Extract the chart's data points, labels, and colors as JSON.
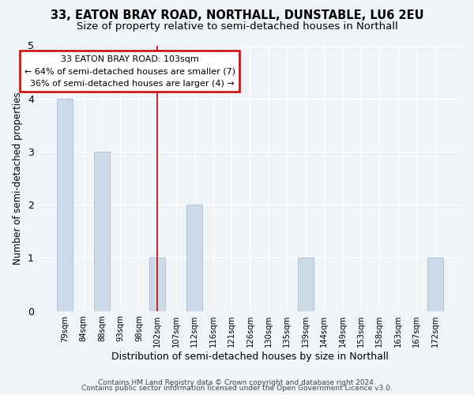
{
  "title": "33, EATON BRAY ROAD, NORTHALL, DUNSTABLE, LU6 2EU",
  "subtitle": "Size of property relative to semi-detached houses in Northall",
  "xlabel": "Distribution of semi-detached houses by size in Northall",
  "ylabel": "Number of semi-detached properties",
  "categories": [
    "79sqm",
    "84sqm",
    "88sqm",
    "93sqm",
    "98sqm",
    "102sqm",
    "107sqm",
    "112sqm",
    "116sqm",
    "121sqm",
    "126sqm",
    "130sqm",
    "135sqm",
    "139sqm",
    "144sqm",
    "149sqm",
    "153sqm",
    "158sqm",
    "163sqm",
    "167sqm",
    "172sqm"
  ],
  "values": [
    4,
    0,
    3,
    0,
    0,
    1,
    0,
    2,
    0,
    0,
    0,
    0,
    0,
    1,
    0,
    0,
    0,
    0,
    0,
    0,
    1
  ],
  "bar_color": "#ccd9e8",
  "bar_edge_color": "#b0c4d8",
  "subject_index": 5,
  "subject_label": "33 EATON BRAY ROAD: 103sqm",
  "smaller_pct": "64%",
  "smaller_n": 7,
  "larger_pct": "36%",
  "larger_n": 4,
  "annotation_box_facecolor": "#ffffff",
  "annotation_box_edgecolor": "#cc0000",
  "vline_color": "#cc0000",
  "ylim": [
    0,
    5
  ],
  "yticks": [
    0,
    1,
    2,
    3,
    4,
    5
  ],
  "fig_bg_color": "#f0f4f8",
  "plot_bg_color": "#f0f4f8",
  "grid_color": "#ffffff",
  "footer1": "Contains HM Land Registry data © Crown copyright and database right 2024.",
  "footer2": "Contains public sector information licensed under the Open Government Licence v3.0.",
  "title_fontsize": 10.5,
  "subtitle_fontsize": 9.5
}
